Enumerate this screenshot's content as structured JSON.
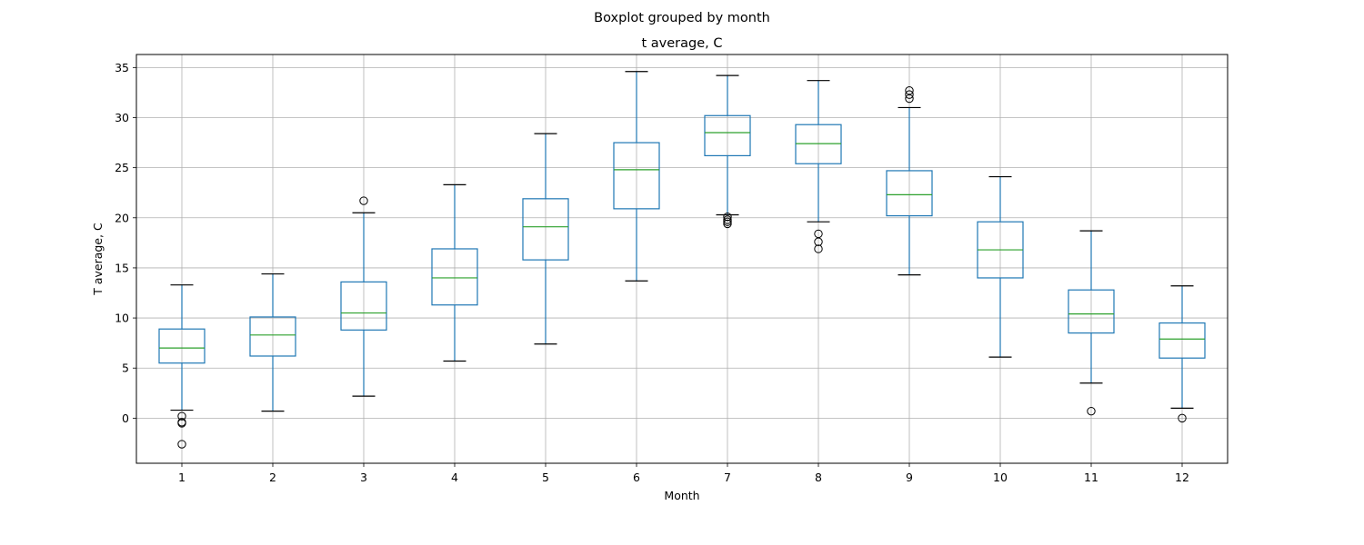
{
  "chart_data": {
    "type": "box",
    "suptitle": "Boxplot grouped by month",
    "title": "t average, C",
    "xlabel": "Month",
    "ylabel": "T average, C",
    "ylim": [
      -4.5,
      36.3
    ],
    "yticks": [
      0,
      5,
      10,
      15,
      20,
      25,
      30,
      35
    ],
    "grid": true,
    "categories": [
      "1",
      "2",
      "3",
      "4",
      "5",
      "6",
      "7",
      "8",
      "9",
      "10",
      "11",
      "12"
    ],
    "boxes": [
      {
        "month": "1",
        "whisker_low": 0.8,
        "q1": 5.5,
        "median": 7.0,
        "q3": 8.9,
        "whisker_high": 13.3,
        "outliers": [
          0.2,
          -0.4,
          -0.5,
          -2.6
        ]
      },
      {
        "month": "2",
        "whisker_low": 0.7,
        "q1": 6.2,
        "median": 8.3,
        "q3": 10.1,
        "whisker_high": 14.4,
        "outliers": []
      },
      {
        "month": "3",
        "whisker_low": 2.2,
        "q1": 8.8,
        "median": 10.5,
        "q3": 13.6,
        "whisker_high": 20.5,
        "outliers": [
          21.7
        ]
      },
      {
        "month": "4",
        "whisker_low": 5.7,
        "q1": 11.3,
        "median": 14.0,
        "q3": 16.9,
        "whisker_high": 23.3,
        "outliers": []
      },
      {
        "month": "5",
        "whisker_low": 7.4,
        "q1": 15.8,
        "median": 19.1,
        "q3": 21.9,
        "whisker_high": 28.4,
        "outliers": []
      },
      {
        "month": "6",
        "whisker_low": 13.7,
        "q1": 20.9,
        "median": 24.8,
        "q3": 27.5,
        "whisker_high": 34.6,
        "outliers": []
      },
      {
        "month": "7",
        "whisker_low": 20.3,
        "q1": 26.2,
        "median": 28.5,
        "q3": 30.2,
        "whisker_high": 34.2,
        "outliers": [
          20.1,
          19.8,
          19.6,
          19.4
        ]
      },
      {
        "month": "8",
        "whisker_low": 19.6,
        "q1": 25.4,
        "median": 27.4,
        "q3": 29.3,
        "whisker_high": 33.7,
        "outliers": [
          18.4,
          17.6,
          16.9
        ]
      },
      {
        "month": "9",
        "whisker_low": 14.3,
        "q1": 20.2,
        "median": 22.3,
        "q3": 24.7,
        "whisker_high": 31.0,
        "outliers": [
          32.7,
          32.3,
          31.9
        ]
      },
      {
        "month": "10",
        "whisker_low": 6.1,
        "q1": 14.0,
        "median": 16.8,
        "q3": 19.6,
        "whisker_high": 24.1,
        "outliers": []
      },
      {
        "month": "11",
        "whisker_low": 3.5,
        "q1": 8.5,
        "median": 10.4,
        "q3": 12.8,
        "whisker_high": 18.7,
        "outliers": [
          0.7
        ]
      },
      {
        "month": "12",
        "whisker_low": 1.0,
        "q1": 6.0,
        "median": 7.9,
        "q3": 9.5,
        "whisker_high": 13.2,
        "outliers": [
          0.0
        ]
      }
    ],
    "colors": {
      "box": "#1f77b4",
      "median": "#2ca02c",
      "whisker_cap": "#000000",
      "outlier": "#000000",
      "grid": "#b0b0b0",
      "axes": "#000000"
    }
  }
}
